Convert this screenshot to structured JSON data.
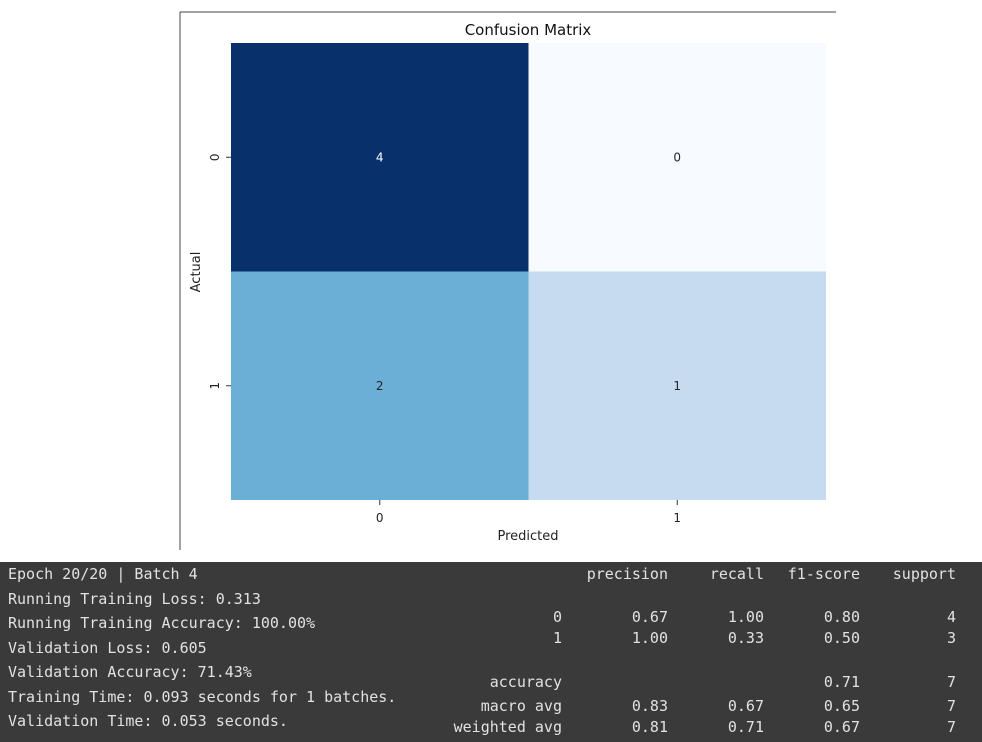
{
  "chart_data": {
    "type": "heatmap",
    "title": "Confusion Matrix",
    "xlabel": "Predicted",
    "ylabel": "Actual",
    "x_ticks": [
      "0",
      "1"
    ],
    "y_ticks": [
      "0",
      "1"
    ],
    "values": [
      [
        4,
        0
      ],
      [
        2,
        1
      ]
    ],
    "colormap": "Blues",
    "colorbar": false
  },
  "training_log": {
    "lines": [
      "Epoch 20/20 | Batch 4",
      "Running Training Loss: 0.313",
      "Running Training Accuracy: 100.00%",
      "Validation Loss: 0.605",
      "Validation Accuracy: 71.43%",
      "Training Time: 0.093 seconds for 1 batches.",
      "Validation Time: 0.053 seconds."
    ]
  },
  "classification_report": {
    "headers": [
      "precision",
      "recall",
      "f1-score",
      "support"
    ],
    "rows": [
      {
        "label": "0",
        "precision": "0.67",
        "recall": "1.00",
        "f1": "0.80",
        "support": "4"
      },
      {
        "label": "1",
        "precision": "1.00",
        "recall": "0.33",
        "f1": "0.50",
        "support": "3"
      },
      {
        "label": "accuracy",
        "precision": "",
        "recall": "",
        "f1": "0.71",
        "support": "7"
      },
      {
        "label": "macro avg",
        "precision": "0.83",
        "recall": "0.67",
        "f1": "0.65",
        "support": "7"
      },
      {
        "label": "weighted avg",
        "precision": "0.81",
        "recall": "0.71",
        "f1": "0.67",
        "support": "7"
      }
    ]
  }
}
